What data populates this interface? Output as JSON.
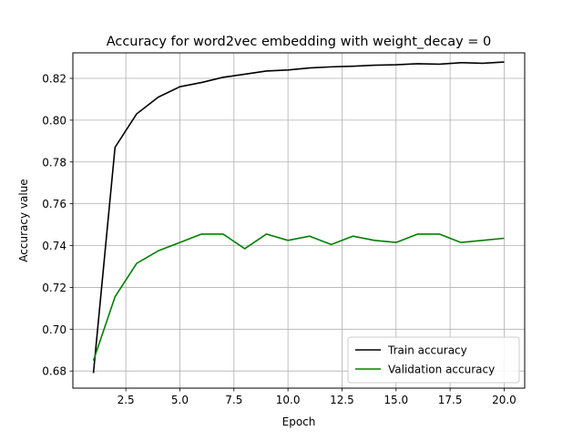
{
  "chart_data": {
    "type": "line",
    "title": "Accuracy for word2vec embedding with weight_decay = 0",
    "xlabel": "Epoch",
    "ylabel": "Accuracy value",
    "x": [
      1,
      2,
      3,
      4,
      5,
      6,
      7,
      8,
      9,
      10,
      11,
      12,
      13,
      14,
      15,
      16,
      17,
      18,
      19,
      20
    ],
    "series": [
      {
        "name": "Train accuracy",
        "color": "#000000",
        "values": [
          0.679,
          0.787,
          0.803,
          0.811,
          0.816,
          0.818,
          0.8205,
          0.822,
          0.8235,
          0.824,
          0.825,
          0.8255,
          0.8258,
          0.8263,
          0.8265,
          0.827,
          0.8268,
          0.8275,
          0.8272,
          0.8278
        ]
      },
      {
        "name": "Validation accuracy",
        "color": "#008000",
        "values": [
          0.685,
          0.7155,
          0.7315,
          0.7375,
          0.7415,
          0.7455,
          0.7455,
          0.7385,
          0.7455,
          0.7425,
          0.7445,
          0.7405,
          0.7445,
          0.7425,
          0.7415,
          0.7455,
          0.7455,
          0.7415,
          0.7425,
          0.7435
        ]
      }
    ],
    "xlim": [
      0.05,
      20.95
    ],
    "ylim": [
      0.6718,
      0.8322
    ],
    "x_ticks": [
      2.5,
      5.0,
      7.5,
      10.0,
      12.5,
      15.0,
      17.5,
      20.0
    ],
    "x_tick_labels": [
      "2.5",
      "5.0",
      "7.5",
      "10.0",
      "12.5",
      "15.0",
      "17.5",
      "20.0"
    ],
    "y_ticks": [
      0.68,
      0.7,
      0.72,
      0.74,
      0.76,
      0.78,
      0.8,
      0.82
    ],
    "y_tick_labels": [
      "0.68",
      "0.70",
      "0.72",
      "0.74",
      "0.76",
      "0.78",
      "0.80",
      "0.82"
    ],
    "grid": true,
    "legend_position": "lower-right"
  }
}
